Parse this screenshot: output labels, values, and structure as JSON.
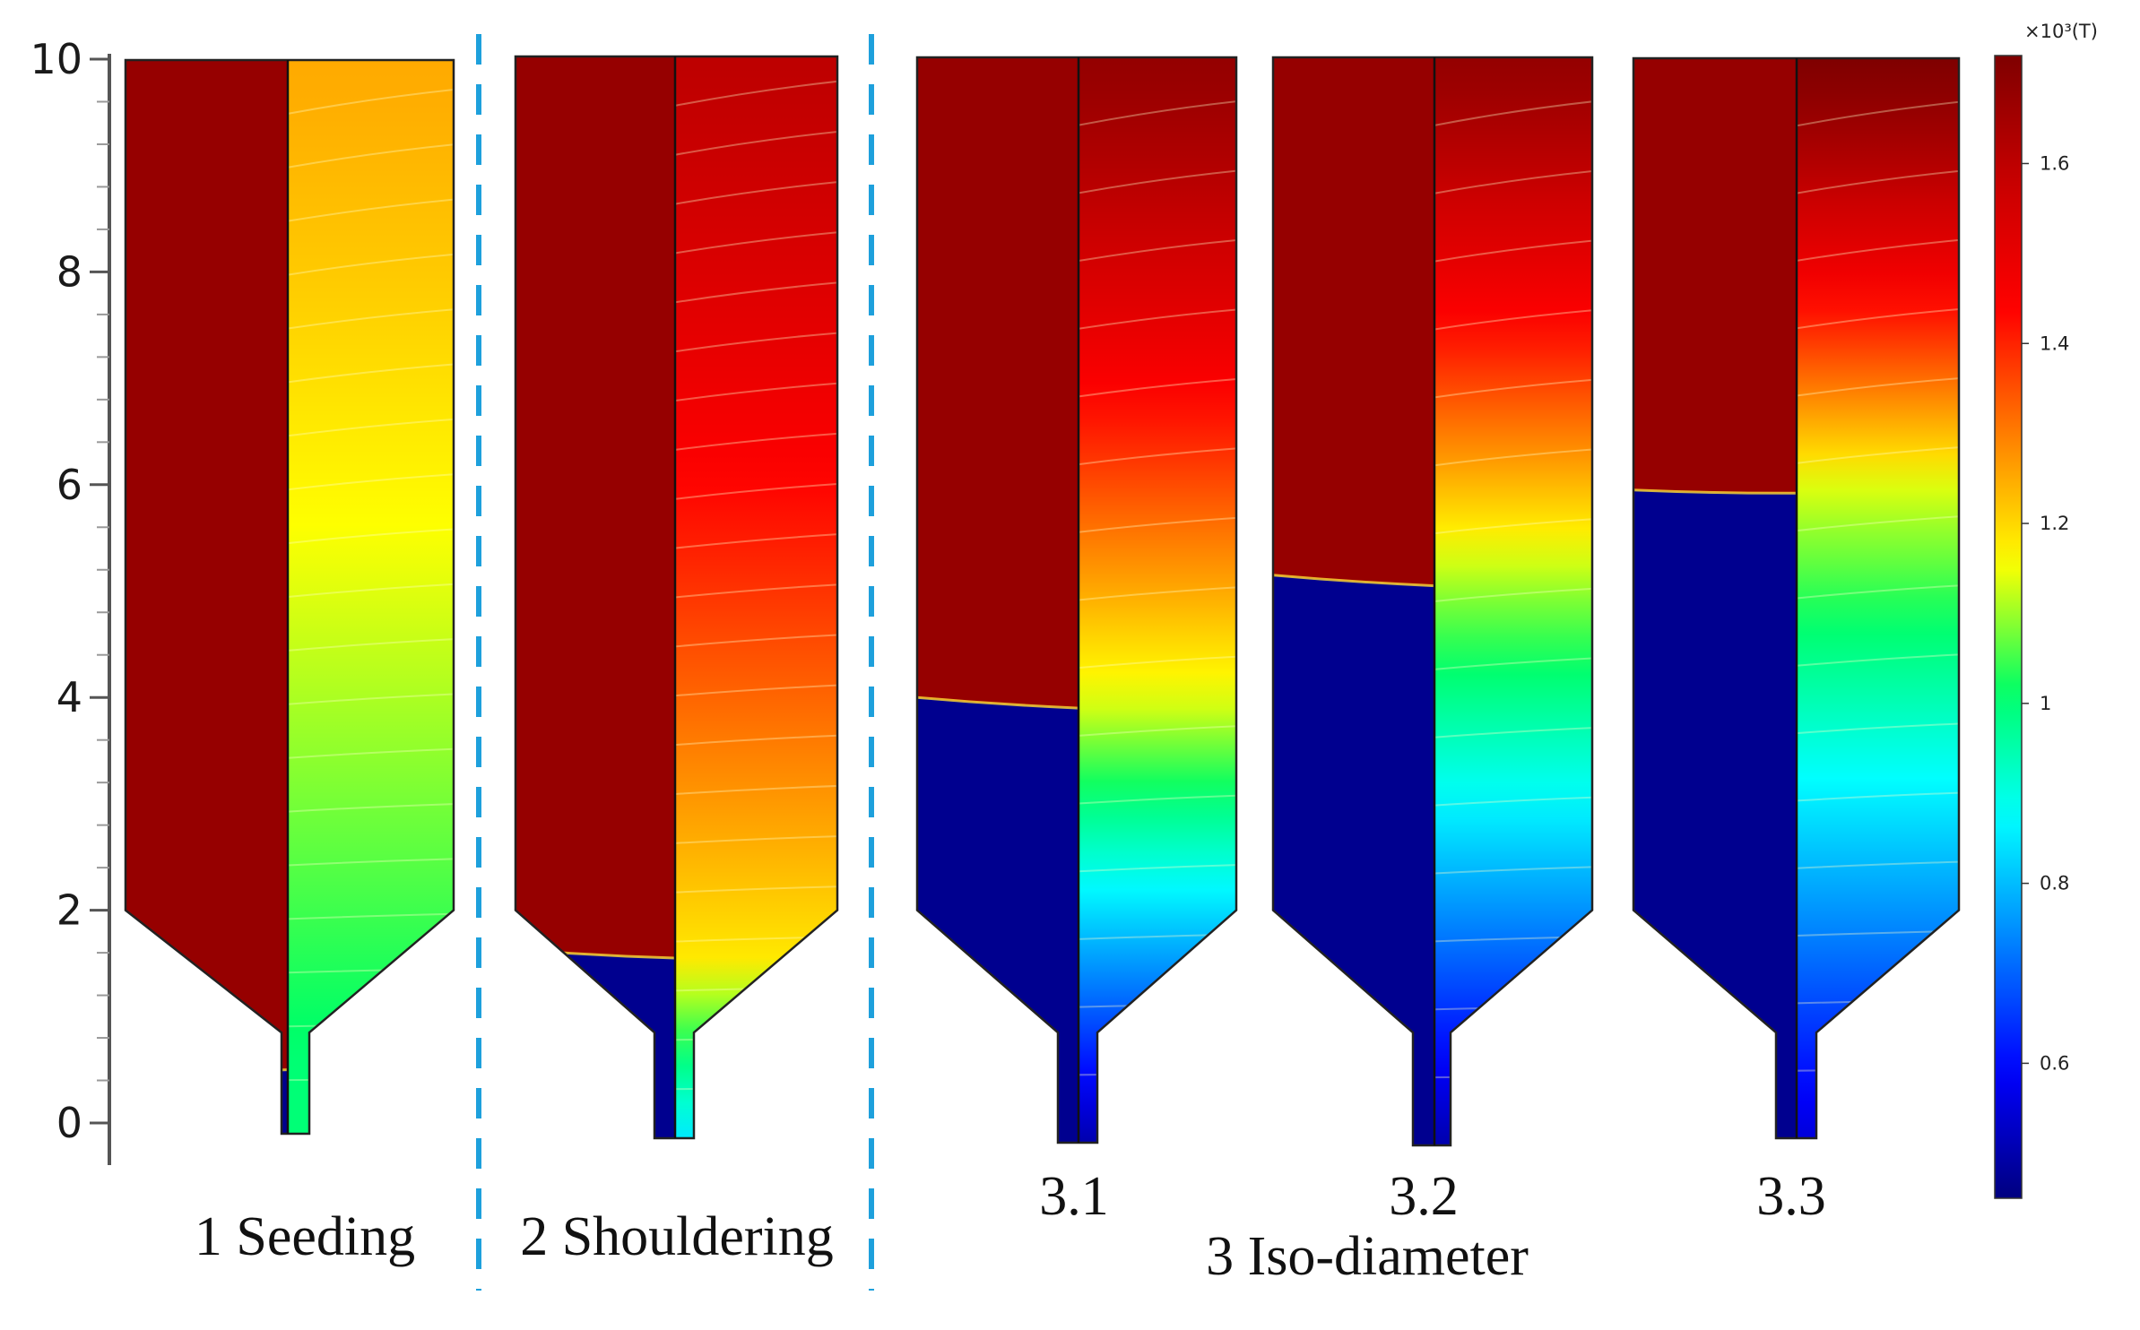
{
  "figure": {
    "colormap": [
      "#00007f",
      "#0000ff",
      "#0080ff",
      "#00ffff",
      "#00ff66",
      "#ffff00",
      "#ff8000",
      "#ff0000",
      "#c80000",
      "#7f0000"
    ],
    "melt_color": "#960000",
    "crystal_color": "#00008f",
    "axis": {
      "ticks": [
        "0",
        "2",
        "4",
        "6",
        "8",
        "10"
      ],
      "min": 0,
      "max": 10
    },
    "colorbar": {
      "title": "×10³(T)",
      "ticks": [
        "0.6",
        "0.8",
        "1",
        "1.2",
        "1.4",
        "1.6"
      ],
      "range": [
        0.45,
        1.72
      ]
    },
    "stages": [
      {
        "id": "1",
        "label": "1 Seeding",
        "interface_height": 0.5,
        "interface_mid_height": 0.5,
        "t_bottom": 1.0,
        "t_interface": 1.0,
        "t_top": 1.25,
        "isoline_count": 20
      },
      {
        "id": "2",
        "label": "2 Shouldering",
        "interface_height": 1.63,
        "interface_mid_height": 1.55,
        "t_bottom": 0.85,
        "t_interface": 1.18,
        "t_top": 1.6,
        "isoline_count": 22
      },
      {
        "id": "3.1",
        "label": "3.1",
        "interface_height": 4.0,
        "interface_mid_height": 3.9,
        "t_bottom": 0.5,
        "t_interface": 1.13,
        "t_top": 1.68,
        "isoline_count": 16
      },
      {
        "id": "3.2",
        "label": "3.2",
        "interface_height": 5.15,
        "interface_mid_height": 5.05,
        "t_bottom": 0.5,
        "t_interface": 1.1,
        "t_top": 1.68,
        "isoline_count": 16
      },
      {
        "id": "3.3",
        "label": "3.3",
        "interface_height": 5.95,
        "interface_mid_height": 5.92,
        "t_bottom": 0.55,
        "t_interface": 1.13,
        "t_top": 1.72,
        "isoline_count": 16
      }
    ],
    "group_label": "3 Iso-diameter"
  }
}
